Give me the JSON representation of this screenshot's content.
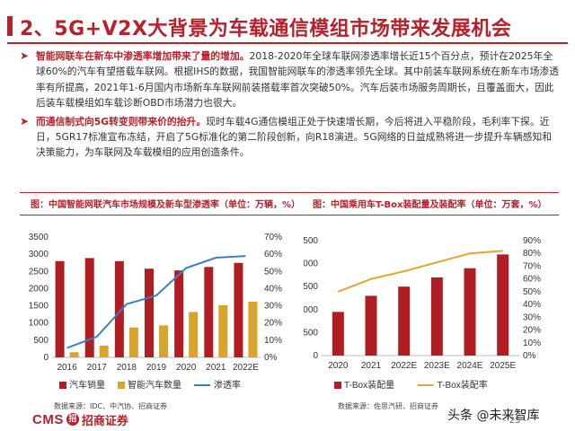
{
  "header": {
    "title": "2、5G+V2X大背景为车载通信模组市场带来发展机会"
  },
  "paragraphs": [
    {
      "lead": "智能网联车在新车中渗透率增加带来了量的增加。",
      "text": "2018-2020年全球车联网渗透率增长近15个百分点，预计在2025年全球60%的汽车有望搭载车联网。根据IHS的数据，我国智能网联车的渗透率领先全球。其中前装车联网系统在新车市场渗透率有所提高，2021年1-6月国内市场新车车联网前装搭载率首次突破50%。汽车后装市场服务周期长，且覆盖面大，因此后装车载模组如车载诊断OBD市场潜力也很大。"
    },
    {
      "lead": "而通信制式向5G转变则带来价的抬升。",
      "text": "现时车载4G通信模组正处于快速增长期，今后将进入平稳阶段，毛利率下探。近日，5GR17标准宣布冻结，开启了5G标准化的第二阶段创新，向R18演进。5G网络的日益成熟将进一步提升车辆感知和决策能力，为车联网及车载模组的应用创造条件。"
    }
  ],
  "captions": {
    "left": "图：中国智能网联汽车市场规模及新车型渗透率（单位：万辆，%）",
    "right": "图：中国乘用车T-Box装配量及装配率（单位：万套，%）"
  },
  "sources": {
    "left": "数据来源：IDC、中汽协、招商证券",
    "right": "数据来源：佐思汽研、招商证券"
  },
  "footer": {
    "logo_text": "CMS",
    "logo_mark": "招",
    "logo_cn": "招商证券",
    "page": "- 25 -",
    "watermark": "头条 @未来智库"
  },
  "colors": {
    "accent": "#b8202a",
    "bar_dark": "#b01e23",
    "bar_gold": "#d9a42c",
    "line_blue": "#3a7fc2",
    "line_gold": "#e0a82e"
  },
  "chart_data": [
    {
      "type": "bar",
      "title": "",
      "categories": [
        "2016",
        "2017",
        "2018",
        "2019",
        "2020",
        "2021",
        "2022E"
      ],
      "ylim": [
        0,
        3500
      ],
      "yticks": [
        "0",
        "500",
        "1000",
        "1500",
        "2000",
        "2500",
        "3000",
        "3500"
      ],
      "y2lim": [
        0,
        70
      ],
      "y2ticks": [
        "0%",
        "10%",
        "20%",
        "30%",
        "40%",
        "50%",
        "60%",
        "70%"
      ],
      "series": [
        {
          "name": "汽车销量",
          "kind": "bar",
          "axis": "left",
          "values": [
            2800,
            2890,
            2800,
            2580,
            2530,
            2630,
            2750
          ]
        },
        {
          "name": "智能汽车数量",
          "kind": "bar",
          "axis": "left",
          "values": [
            150,
            340,
            870,
            930,
            1320,
            1520,
            1620
          ]
        },
        {
          "name": "渗透率",
          "kind": "line",
          "axis": "right",
          "values": [
            5.5,
            12,
            31,
            36,
            52,
            58,
            59
          ]
        }
      ],
      "legend_position": "bottom"
    },
    {
      "type": "bar",
      "title": "",
      "categories": [
        "2020",
        "2021",
        "2022E",
        "2023E",
        "2024E",
        "2025E"
      ],
      "ylim": [
        0,
        2500
      ],
      "yticks": [
        "0",
        "500",
        "1000",
        "1500",
        "2000",
        "2500"
      ],
      "y2lim": [
        0,
        90
      ],
      "y2ticks": [
        "0%",
        "10%",
        "20%",
        "30%",
        "40%",
        "50%",
        "60%",
        "70%",
        "80%",
        "90%"
      ],
      "series": [
        {
          "name": "T-Box装配量",
          "kind": "bar",
          "axis": "left",
          "values": [
            950,
            1300,
            1500,
            1700,
            1900,
            2200
          ]
        },
        {
          "name": "T-Box装配率",
          "kind": "line",
          "axis": "right",
          "values": [
            50,
            60,
            66,
            73,
            80,
            82
          ]
        }
      ],
      "legend_position": "bottom"
    }
  ]
}
